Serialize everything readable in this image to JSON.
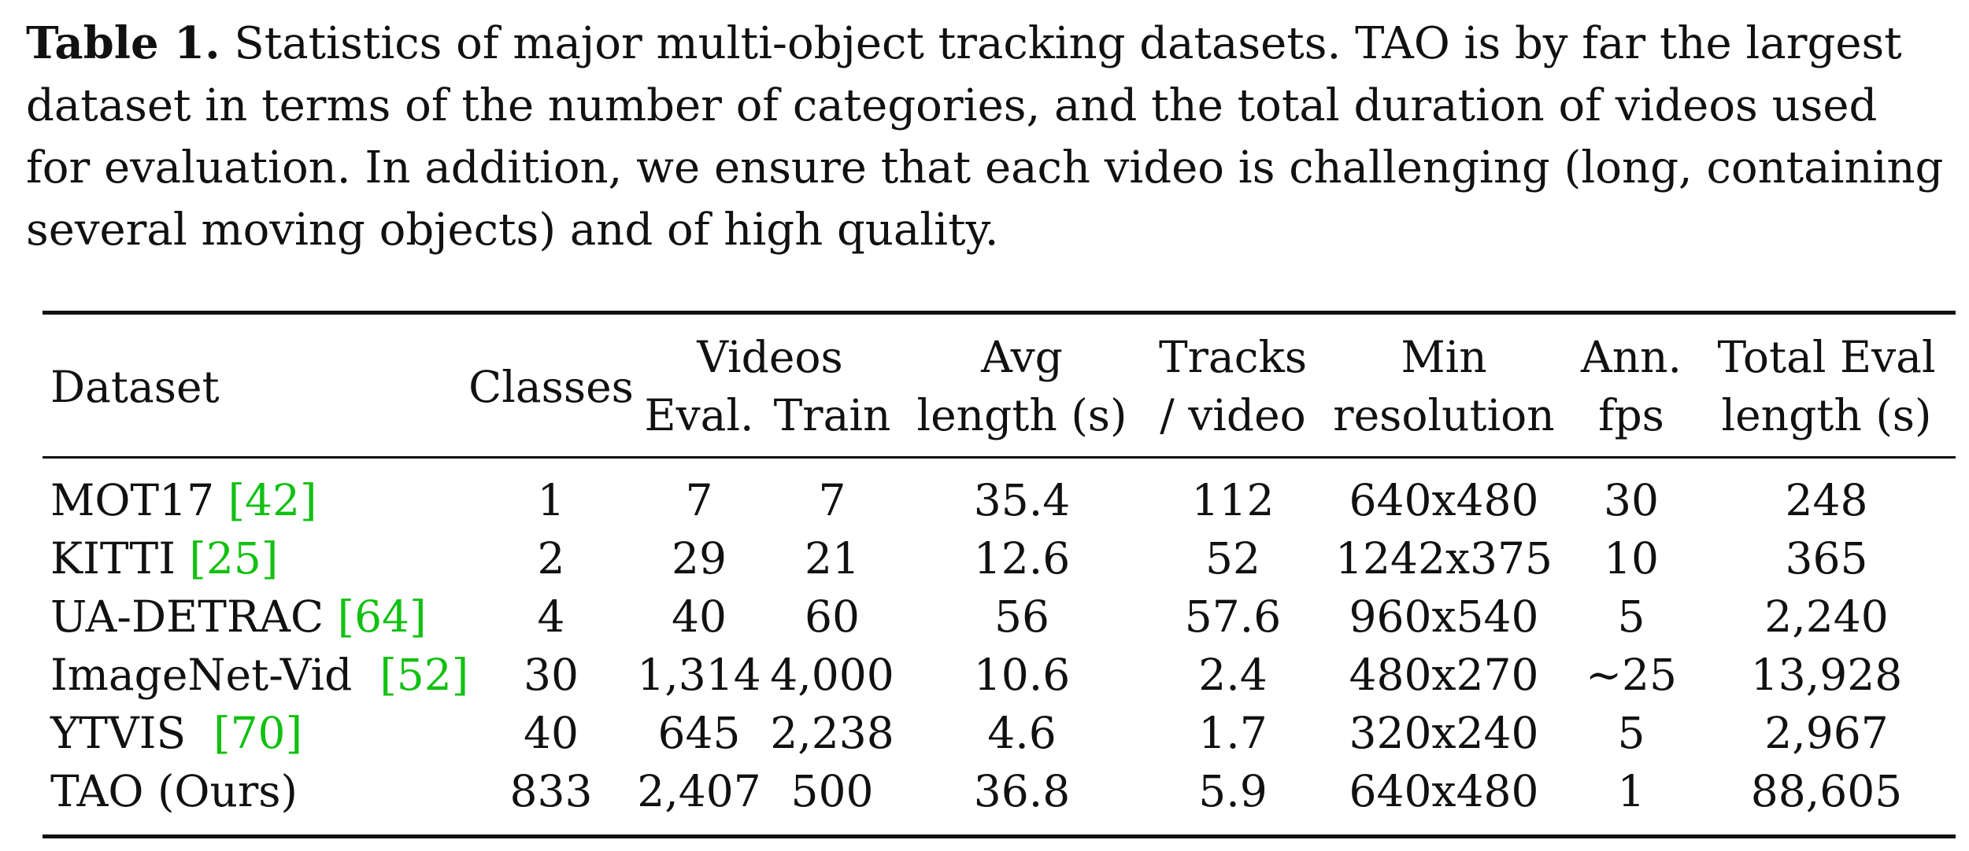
{
  "caption": {
    "label": "Table 1.",
    "lines": [
      " Statistics of major multi-object tracking datasets. TAO is by far the largest",
      "dataset in terms of the number of categories, and the total duration of videos used",
      "for evaluation. In addition, we ensure that each video is challenging (long, containing",
      "several moving objects) and of high quality."
    ]
  },
  "table": {
    "header": {
      "dataset": "Dataset",
      "classes": "Classes",
      "videos": "Videos",
      "eval": "Eval.",
      "train": "Train",
      "avg_l1": "Avg",
      "avg_l2": "length (s)",
      "tracks_l1": "Tracks",
      "tracks_l2": "/ video",
      "minres_l1": "Min",
      "minres_l2": "resolution",
      "fps_l1": "Ann.",
      "fps_l2": "fps",
      "total_l1": "Total Eval",
      "total_l2": "length (s)"
    },
    "rows": [
      {
        "name": "MOT17",
        "ref": "42",
        "classes": "1",
        "eval": "7",
        "train": "7",
        "avg": "35.4",
        "tracks": "112",
        "res": "640x480",
        "fps": "30",
        "total": "248"
      },
      {
        "name": "KITTI",
        "ref": "25",
        "classes": "2",
        "eval": "29",
        "train": "21",
        "avg": "12.6",
        "tracks": "52",
        "res": "1242x375",
        "fps": "10",
        "total": "365"
      },
      {
        "name": "UA-DETRAC",
        "ref": "64",
        "classes": "4",
        "eval": "40",
        "train": "60",
        "avg": "56",
        "tracks": "57.6",
        "res": "960x540",
        "fps": "5",
        "total": "2,240"
      },
      {
        "name": "ImageNet-Vid",
        "ref": "52",
        "classes": "30",
        "eval": "1,314",
        "train": "4,000",
        "avg": "10.6",
        "tracks": "2.4",
        "res": "480x270",
        "fps": "∼25",
        "total": "13,928"
      },
      {
        "name": "YTVIS",
        "ref": "70",
        "classes": "40",
        "eval": "645",
        "train": "2,238",
        "avg": "4.6",
        "tracks": "1.7",
        "res": "320x240",
        "fps": "5",
        "total": "2,967"
      },
      {
        "name": "TAO (Ours)",
        "ref": "",
        "classes": "833",
        "eval": "2,407",
        "train": "500",
        "avg": "36.8",
        "tracks": "5.9",
        "res": "640x480",
        "fps": "1",
        "total": "88,605"
      }
    ]
  }
}
